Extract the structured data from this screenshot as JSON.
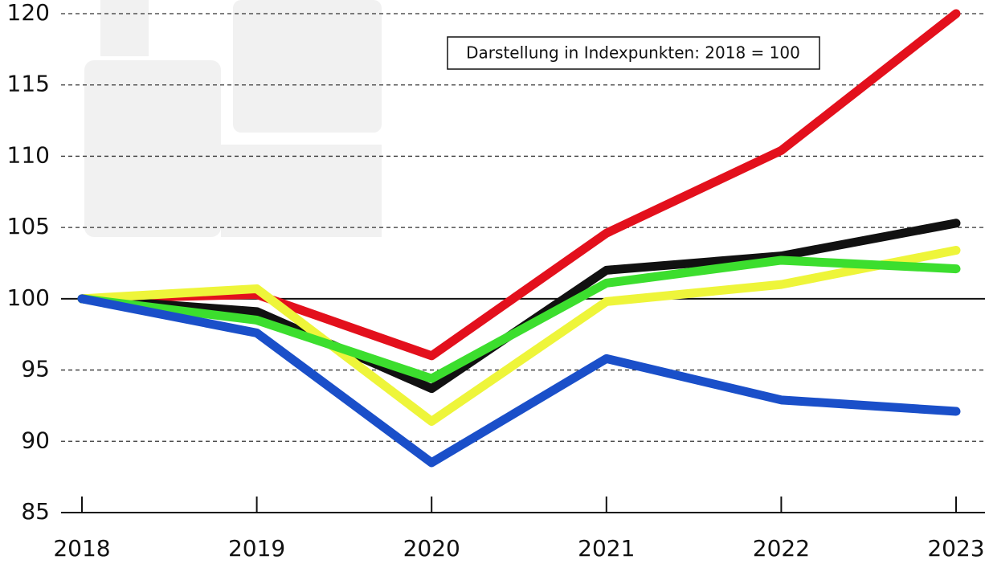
{
  "chart_data": {
    "type": "line",
    "annotation": "Darstellung in Indexpunkten: 2018 = 100",
    "categories": [
      "2018",
      "2019",
      "2020",
      "2021",
      "2022",
      "2023"
    ],
    "series": [
      {
        "color": "#e3101c",
        "values": [
          100,
          100.3,
          96,
          104.6,
          110.4,
          120
        ]
      },
      {
        "color": "#111111",
        "values": [
          100,
          99.1,
          93.7,
          102,
          103,
          105.3
        ]
      },
      {
        "color": "#eef53a",
        "values": [
          100,
          100.7,
          91.4,
          99.8,
          101,
          103.4
        ]
      },
      {
        "color": "#3cde2e",
        "values": [
          100,
          98.5,
          94.4,
          101.1,
          102.7,
          102.1
        ]
      },
      {
        "color": "#1a4fc9",
        "values": [
          100,
          97.6,
          88.5,
          95.8,
          92.9,
          92.1
        ]
      }
    ],
    "ylim": [
      85,
      120
    ],
    "yticks": [
      85,
      90,
      95,
      100,
      105,
      110,
      115,
      120
    ],
    "reference_line": 100,
    "grid": true
  }
}
